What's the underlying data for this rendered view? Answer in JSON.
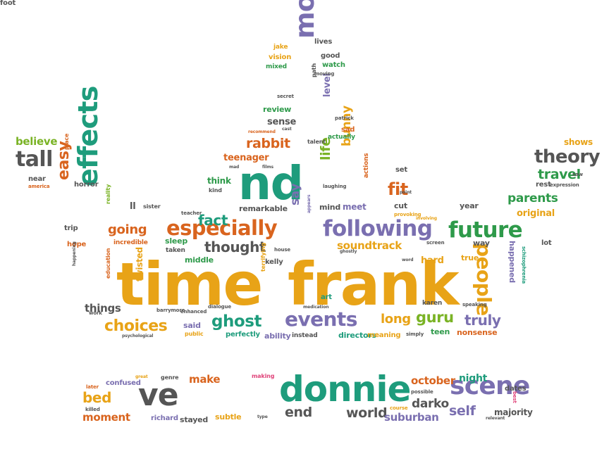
{
  "colors": {
    "orange": "#d9641e",
    "gold": "#e8a317",
    "green": "#2e9a4a",
    "lime": "#7ab325",
    "teal": "#1e9c7c",
    "purple": "#7a6fb0",
    "grey": "#555555",
    "red": "#c7282c",
    "pink": "#e0457b"
  },
  "words": [
    {
      "text": "time",
      "color": "gold"
    },
    {
      "text": "frank",
      "color": "gold"
    },
    {
      "text": "nd",
      "color": "teal"
    },
    {
      "text": "movies",
      "color": "purple"
    },
    {
      "text": "especially",
      "color": "orange"
    },
    {
      "text": "following",
      "color": "purple"
    },
    {
      "text": "future",
      "color": "green"
    },
    {
      "text": "effects",
      "color": "teal"
    },
    {
      "text": "people",
      "color": "gold"
    },
    {
      "text": "thought",
      "color": "grey"
    },
    {
      "text": "events",
      "color": "purple"
    },
    {
      "text": "guru",
      "color": "lime"
    },
    {
      "text": "truly",
      "color": "purple"
    },
    {
      "text": "long",
      "color": "gold"
    },
    {
      "text": "ghost",
      "color": "teal"
    },
    {
      "text": "choices",
      "color": "gold"
    },
    {
      "text": "theory",
      "color": "grey"
    },
    {
      "text": "travel",
      "color": "green"
    },
    {
      "text": "parents",
      "color": "green"
    },
    {
      "text": "original",
      "color": "gold"
    },
    {
      "text": "tall",
      "color": "grey"
    },
    {
      "text": "believe",
      "color": "lime"
    },
    {
      "text": "easy",
      "color": "orange"
    },
    {
      "text": "going",
      "color": "orange"
    },
    {
      "text": "fact",
      "color": "teal"
    },
    {
      "text": "rabbit",
      "color": "orange"
    },
    {
      "text": "life",
      "color": "lime"
    },
    {
      "text": "bunny",
      "color": "gold"
    },
    {
      "text": "fit",
      "color": "orange"
    },
    {
      "text": "say",
      "color": "purple"
    },
    {
      "text": "soundtrack",
      "color": "gold"
    },
    {
      "text": "level",
      "color": "purple"
    },
    {
      "text": "review",
      "color": "green"
    },
    {
      "text": "sense",
      "color": "grey"
    },
    {
      "text": "teenager",
      "color": "orange"
    },
    {
      "text": "think",
      "color": "green"
    },
    {
      "text": "remarkable",
      "color": "grey"
    },
    {
      "text": "mind",
      "color": "grey"
    },
    {
      "text": "meet",
      "color": "purple"
    },
    {
      "text": "cut",
      "color": "grey"
    },
    {
      "text": "set",
      "color": "grey"
    },
    {
      "text": "horror",
      "color": "grey"
    },
    {
      "text": "reality",
      "color": "lime"
    },
    {
      "text": "sister",
      "color": "grey"
    },
    {
      "text": "teacher",
      "color": "grey"
    },
    {
      "text": "sleep",
      "color": "green"
    },
    {
      "text": "taken",
      "color": "grey"
    },
    {
      "text": "middle",
      "color": "green"
    },
    {
      "text": "kelly",
      "color": "grey"
    },
    {
      "text": "hard",
      "color": "gold"
    },
    {
      "text": "true",
      "color": "gold"
    },
    {
      "text": "way",
      "color": "grey"
    },
    {
      "text": "year",
      "color": "grey"
    },
    {
      "text": "shows",
      "color": "gold"
    },
    {
      "text": "rest",
      "color": "grey"
    },
    {
      "text": "lot",
      "color": "grey"
    },
    {
      "text": "happened",
      "color": "purple"
    },
    {
      "text": "schizophrenia",
      "color": "teal"
    },
    {
      "text": "things",
      "color": "grey"
    },
    {
      "text": "twisted",
      "color": "gold"
    },
    {
      "text": "said",
      "color": "purple"
    },
    {
      "text": "public",
      "color": "gold"
    },
    {
      "text": "perfectly",
      "color": "teal"
    },
    {
      "text": "ability",
      "color": "purple"
    },
    {
      "text": "instead",
      "color": "grey"
    },
    {
      "text": "directors",
      "color": "teal"
    },
    {
      "text": "meaning",
      "color": "gold"
    },
    {
      "text": "teen",
      "color": "green"
    },
    {
      "text": "nonsense",
      "color": "orange"
    },
    {
      "text": "art",
      "color": "teal"
    },
    {
      "text": "terrifying",
      "color": "gold"
    },
    {
      "text": "karen",
      "color": "grey"
    },
    {
      "text": "hope",
      "color": "orange"
    },
    {
      "text": "trip",
      "color": "grey"
    },
    {
      "text": "incredible",
      "color": "orange"
    },
    {
      "text": "education",
      "color": "orange"
    },
    {
      "text": "america",
      "color": "orange"
    },
    {
      "text": "near",
      "color": "grey"
    },
    {
      "text": "place",
      "color": "orange"
    },
    {
      "text": "ll",
      "color": "grey"
    },
    {
      "text": "jake",
      "color": "gold"
    },
    {
      "text": "lives",
      "color": "grey"
    },
    {
      "text": "vision",
      "color": "gold"
    },
    {
      "text": "good",
      "color": "grey"
    },
    {
      "text": "mixed",
      "color": "green"
    },
    {
      "text": "watch",
      "color": "green"
    },
    {
      "text": "moving",
      "color": "grey"
    },
    {
      "text": "path",
      "color": "grey"
    },
    {
      "text": "secret",
      "color": "grey"
    },
    {
      "text": "patrick",
      "color": "grey"
    },
    {
      "text": "sad",
      "color": "orange"
    },
    {
      "text": "actually",
      "color": "green"
    },
    {
      "text": "actions",
      "color": "orange"
    },
    {
      "text": "talent",
      "color": "grey"
    },
    {
      "text": "cast",
      "color": "grey"
    },
    {
      "text": "recommend",
      "color": "orange"
    },
    {
      "text": "mad",
      "color": "grey"
    },
    {
      "text": "films",
      "color": "grey"
    },
    {
      "text": "kind",
      "color": "grey"
    },
    {
      "text": "laughing",
      "color": "grey"
    },
    {
      "text": "saw",
      "color": "grey"
    },
    {
      "text": "expression",
      "color": "grey"
    },
    {
      "text": "point",
      "color": "grey"
    },
    {
      "text": "provoking",
      "color": "gold"
    },
    {
      "text": "involving",
      "color": "gold"
    },
    {
      "text": "appears",
      "color": "purple"
    },
    {
      "text": "screen",
      "color": "grey"
    },
    {
      "text": "house",
      "color": "grey"
    },
    {
      "text": "ghostly",
      "color": "grey"
    },
    {
      "text": "word",
      "color": "grey"
    },
    {
      "text": "speaking",
      "color": "grey"
    },
    {
      "text": "medication",
      "color": "grey"
    },
    {
      "text": "dialogue",
      "color": "grey"
    },
    {
      "text": "barrymore",
      "color": "grey"
    },
    {
      "text": "enhanced",
      "color": "grey"
    },
    {
      "text": "work",
      "color": "grey"
    },
    {
      "text": "psychological",
      "color": "grey"
    },
    {
      "text": "happening",
      "color": "grey"
    },
    {
      "text": "simply",
      "color": "grey"
    },
    {
      "text": "ve",
      "color": "grey"
    },
    {
      "text": "donnie",
      "color": "teal"
    },
    {
      "text": "scene",
      "color": "purple"
    },
    {
      "text": "bed",
      "color": "gold"
    },
    {
      "text": "make",
      "color": "orange"
    },
    {
      "text": "october",
      "color": "orange"
    },
    {
      "text": "darko",
      "color": "grey"
    },
    {
      "text": "end",
      "color": "grey"
    },
    {
      "text": "world",
      "color": "grey"
    },
    {
      "text": "self",
      "color": "purple"
    },
    {
      "text": "night",
      "color": "teal"
    },
    {
      "text": "moment",
      "color": "orange"
    },
    {
      "text": "richard",
      "color": "purple"
    },
    {
      "text": "stayed",
      "color": "grey"
    },
    {
      "text": "subtle",
      "color": "gold"
    },
    {
      "text": "suburban",
      "color": "purple"
    },
    {
      "text": "confused",
      "color": "purple"
    },
    {
      "text": "later",
      "color": "orange"
    },
    {
      "text": "great",
      "color": "gold"
    },
    {
      "text": "genre",
      "color": "grey"
    },
    {
      "text": "making",
      "color": "pink"
    },
    {
      "text": "possible",
      "color": "grey"
    },
    {
      "text": "course",
      "color": "gold"
    },
    {
      "text": "type",
      "color": "grey"
    },
    {
      "text": "dates",
      "color": "grey"
    },
    {
      "text": "best",
      "color": "pink"
    },
    {
      "text": "majority",
      "color": "grey"
    },
    {
      "text": "killed",
      "color": "grey"
    },
    {
      "text": "relevant",
      "color": "grey"
    },
    {
      "text": "foot",
      "color": "grey"
    }
  ]
}
